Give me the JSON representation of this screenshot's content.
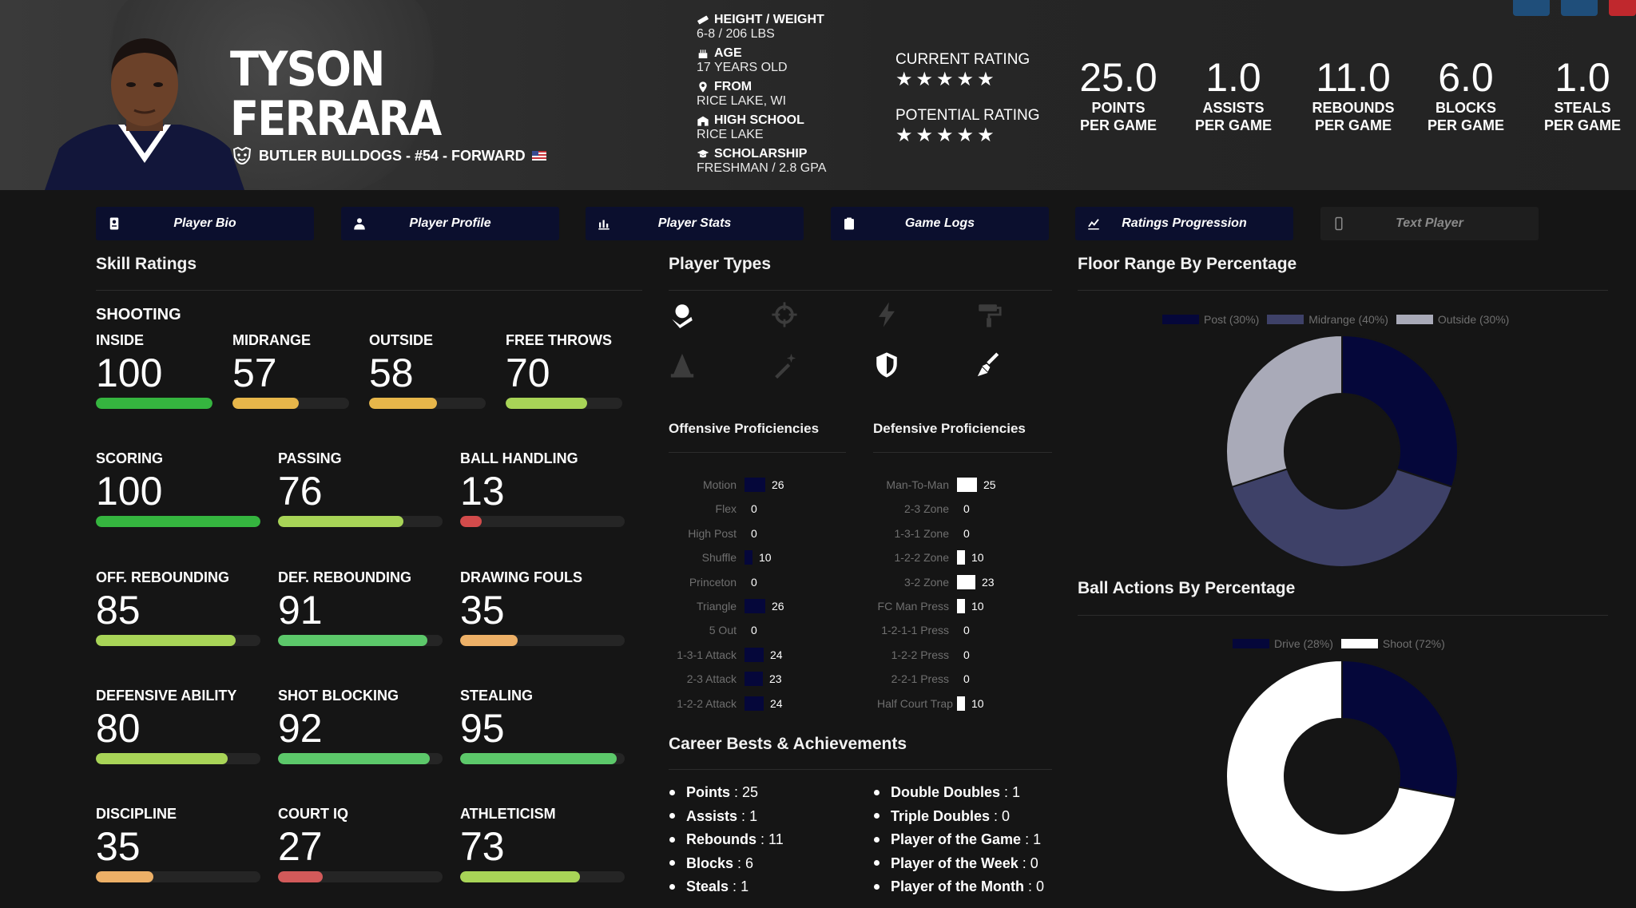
{
  "player": {
    "first_name": "TYSON",
    "last_name": "FERRARA",
    "team_line": "BUTLER BULLDOGS - #54 - FORWARD"
  },
  "bio": [
    {
      "label": "HEIGHT / WEIGHT",
      "value": "6-8 / 206 LBS",
      "icon": "ruler-icon"
    },
    {
      "label": "AGE",
      "value": "17 YEARS OLD",
      "icon": "cake-icon"
    },
    {
      "label": "FROM",
      "value": "RICE LAKE, WI",
      "icon": "location-pin-icon"
    },
    {
      "label": "HIGH SCHOOL",
      "value": "RICE LAKE",
      "icon": "school-icon"
    },
    {
      "label": "SCHOLARSHIP",
      "value": "FRESHMAN / 2.8 GPA",
      "icon": "graduation-cap-icon"
    }
  ],
  "ratings": {
    "current_label": "CURRENT RATING",
    "current_stars": 5,
    "potential_label": "POTENTIAL RATING",
    "potential_stars": 5
  },
  "season_stats": [
    {
      "value": "25.0",
      "line1": "POINTS",
      "line2": "PER GAME"
    },
    {
      "value": "1.0",
      "line1": "ASSISTS",
      "line2": "PER GAME"
    },
    {
      "value": "11.0",
      "line1": "REBOUNDS",
      "line2": "PER GAME"
    },
    {
      "value": "6.0",
      "line1": "BLOCKS",
      "line2": "PER GAME"
    },
    {
      "value": "1.0",
      "line1": "STEALS",
      "line2": "PER GAME"
    }
  ],
  "nav": [
    {
      "label": "Player Bio",
      "icon": "id-card-icon",
      "enabled": true
    },
    {
      "label": "Player Profile",
      "icon": "profile-icon",
      "enabled": true
    },
    {
      "label": "Player Stats",
      "icon": "bar-chart-icon",
      "enabled": true
    },
    {
      "label": "Game Logs",
      "icon": "clipboard-icon",
      "enabled": true
    },
    {
      "label": "Ratings Progression",
      "icon": "line-chart-icon",
      "enabled": true
    },
    {
      "label": "Text Player",
      "icon": "phone-icon",
      "enabled": false
    }
  ],
  "sections": {
    "skills": "Skill Ratings",
    "player_types": "Player Types",
    "floor_range": "Floor Range By Percentage",
    "ball_actions": "Ball Actions By Percentage",
    "offensive": "Offensive Proficiencies",
    "defensive": "Defensive Proficiencies",
    "career": "Career Bests & Achievements"
  },
  "skills": {
    "shooting_label": "SHOOTING",
    "row1": [
      {
        "label": "INSIDE",
        "value": 100,
        "color": "#35b53f"
      },
      {
        "label": "MIDRANGE",
        "value": 57,
        "color": "#e7b64a"
      },
      {
        "label": "OUTSIDE",
        "value": 58,
        "color": "#e7b64a"
      },
      {
        "label": "FREE THROWS",
        "value": 70,
        "color": "#a8d457"
      }
    ],
    "grid": [
      {
        "label": "SCORING",
        "value": 100,
        "color": "#35b53f"
      },
      {
        "label": "PASSING",
        "value": 76,
        "color": "#a8d457"
      },
      {
        "label": "BALL HANDLING",
        "value": 13,
        "color": "#d24b4b"
      },
      {
        "label": "OFF. REBOUNDING",
        "value": 85,
        "color": "#a8d457"
      },
      {
        "label": "DEF. REBOUNDING",
        "value": 91,
        "color": "#5cc86a"
      },
      {
        "label": "DRAWING FOULS",
        "value": 35,
        "color": "#edb067"
      },
      {
        "label": "DEFENSIVE ABILITY",
        "value": 80,
        "color": "#a8d457"
      },
      {
        "label": "SHOT BLOCKING",
        "value": 92,
        "color": "#5cc86a"
      },
      {
        "label": "STEALING",
        "value": 95,
        "color": "#5cc86a"
      },
      {
        "label": "DISCIPLINE",
        "value": 35,
        "color": "#edb067"
      },
      {
        "label": "COURT IQ",
        "value": 27,
        "color": "#d25a5a"
      },
      {
        "label": "ATHLETICISM",
        "value": 73,
        "color": "#a8d457"
      }
    ]
  },
  "player_types": [
    {
      "icon": "basketball-hand-icon",
      "active": true
    },
    {
      "icon": "crosshair-icon",
      "active": false
    },
    {
      "icon": "lightning-icon",
      "active": false
    },
    {
      "icon": "paint-roller-icon",
      "active": false
    },
    {
      "icon": "cone-icon",
      "active": false
    },
    {
      "icon": "magic-wand-icon",
      "active": false
    },
    {
      "icon": "shield-icon",
      "active": true
    },
    {
      "icon": "broom-icon",
      "active": true
    }
  ],
  "offensive": [
    {
      "label": "Motion",
      "value": 26
    },
    {
      "label": "Flex",
      "value": 0
    },
    {
      "label": "High Post",
      "value": 0
    },
    {
      "label": "Shuffle",
      "value": 10
    },
    {
      "label": "Princeton",
      "value": 0
    },
    {
      "label": "Triangle",
      "value": 26
    },
    {
      "label": "5 Out",
      "value": 0
    },
    {
      "label": "1-3-1 Attack",
      "value": 24
    },
    {
      "label": "2-3 Attack",
      "value": 23
    },
    {
      "label": "1-2-2 Attack",
      "value": 24
    }
  ],
  "defensive": [
    {
      "label": "Man-To-Man",
      "value": 25
    },
    {
      "label": "2-3 Zone",
      "value": 0
    },
    {
      "label": "1-3-1 Zone",
      "value": 0
    },
    {
      "label": "1-2-2 Zone",
      "value": 10
    },
    {
      "label": "3-2 Zone",
      "value": 23
    },
    {
      "label": "FC Man Press",
      "value": 10
    },
    {
      "label": "1-2-1-1 Press",
      "value": 0
    },
    {
      "label": "1-2-2 Press",
      "value": 0
    },
    {
      "label": "2-2-1 Press",
      "value": 0
    },
    {
      "label": "Half Court Trap",
      "value": 10
    }
  ],
  "career_left": [
    {
      "key": "Points",
      "value": "25"
    },
    {
      "key": "Assists",
      "value": "1"
    },
    {
      "key": "Rebounds",
      "value": "11"
    },
    {
      "key": "Blocks",
      "value": "6"
    },
    {
      "key": "Steals",
      "value": "1"
    }
  ],
  "career_right": [
    {
      "key": "Double Doubles",
      "value": "1"
    },
    {
      "key": "Triple Doubles",
      "value": "0"
    },
    {
      "key": "Player of the Game",
      "value": "1"
    },
    {
      "key": "Player of the Week",
      "value": "0"
    },
    {
      "key": "Player of the Month",
      "value": "0"
    }
  ],
  "chart_data": [
    {
      "type": "pie",
      "title": "Floor Range By Percentage",
      "categories": [
        "Post (30%)",
        "Midrange (40%)",
        "Outside (30%)"
      ],
      "values": [
        30,
        40,
        30
      ],
      "colors": [
        "#05073a",
        "#3e4168",
        "#a9aab8"
      ],
      "legend": "top"
    },
    {
      "type": "pie",
      "title": "Ball Actions By Percentage",
      "categories": [
        "Drive (28%)",
        "Shoot (72%)"
      ],
      "values": [
        28,
        72
      ],
      "colors": [
        "#05073a",
        "#ffffff"
      ],
      "legend": "top"
    }
  ],
  "colors": {
    "nav_bg": "#0b0f2e",
    "prof_offense": "#05073a",
    "prof_defense": "#ffffff",
    "corner_btn": "#1f4e7a",
    "corner_btn_red": "#c0282d"
  }
}
